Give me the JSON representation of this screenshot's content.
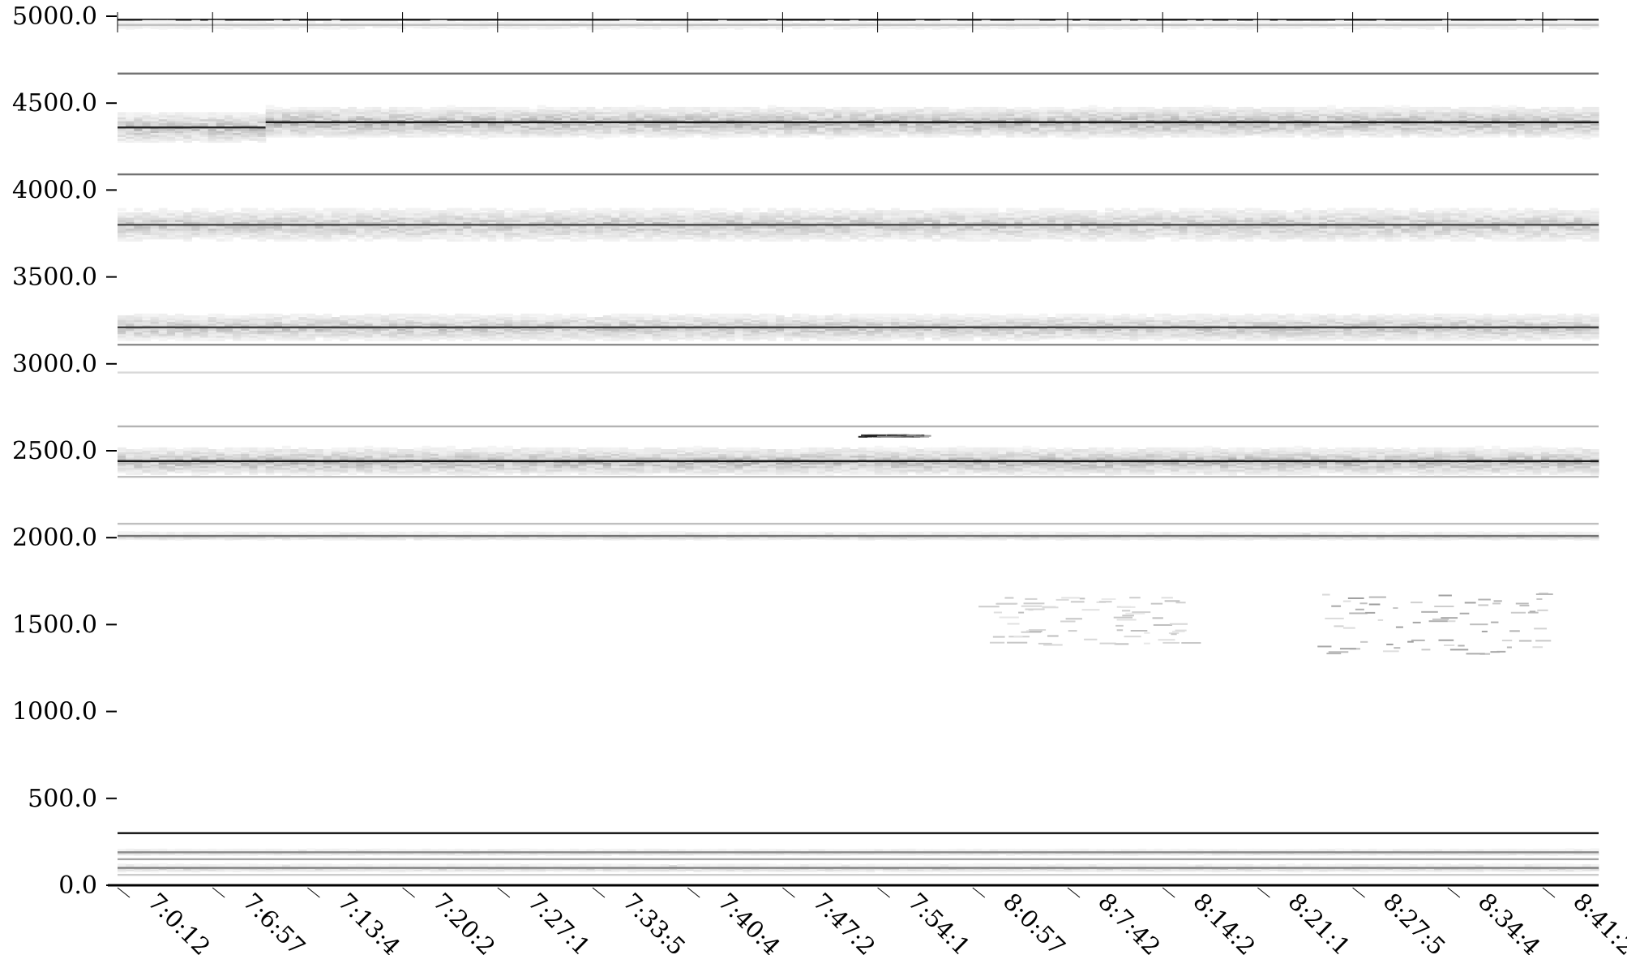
{
  "chart_data": {
    "type": "heatmap",
    "title": "",
    "xlabel": "",
    "ylabel": "",
    "ylim": [
      0,
      5000
    ],
    "y_ticks": [
      {
        "value": 0,
        "label": "0.0"
      },
      {
        "value": 500,
        "label": "500.0"
      },
      {
        "value": 1000,
        "label": "1000.0"
      },
      {
        "value": 1500,
        "label": "1500.0"
      },
      {
        "value": 2000,
        "label": "2000.0"
      },
      {
        "value": 2500,
        "label": "2500.0"
      },
      {
        "value": 3000,
        "label": "3000.0"
      },
      {
        "value": 3500,
        "label": "3500.0"
      },
      {
        "value": 4000,
        "label": "4000.0"
      },
      {
        "value": 4500,
        "label": "4500.0"
      },
      {
        "value": 5000,
        "label": "5000.0"
      }
    ],
    "x_tick_labels": [
      "7:0:12",
      "7:6:57",
      "7:13:4",
      "7:20:2",
      "7:27:1",
      "7:33:5",
      "7:40:4",
      "7:47:2",
      "7:54:1",
      "8:0:57",
      "8:7:42",
      "8:14:2",
      "8:21:1",
      "8:27:5",
      "8:34:4",
      "8:41:2"
    ],
    "colormap": "white-to-black (grayscale intensity)",
    "grid": false,
    "legend": "none",
    "bands": [
      {
        "value": 4980,
        "intensity": 0.9,
        "spread": 0
      },
      {
        "value": 4950,
        "intensity": 0.25,
        "spread": 30
      },
      {
        "value": 4670,
        "intensity": 0.55,
        "spread": 0
      },
      {
        "value": 4380,
        "intensity": 0.85,
        "spread": 90,
        "from": 0,
        "to": 0.1,
        "shift": -20
      },
      {
        "value": 4390,
        "intensity": 0.9,
        "spread": 90,
        "from": 0.1,
        "to": 1
      },
      {
        "value": 4090,
        "intensity": 0.55,
        "spread": 0
      },
      {
        "value": 3800,
        "intensity": 0.7,
        "spread": 100
      },
      {
        "value": 3210,
        "intensity": 0.75,
        "spread": 80
      },
      {
        "value": 3110,
        "intensity": 0.45,
        "spread": 0
      },
      {
        "value": 2950,
        "intensity": 0.15,
        "spread": 0
      },
      {
        "value": 2640,
        "intensity": 0.3,
        "spread": 0
      },
      {
        "value": 2440,
        "intensity": 0.9,
        "spread": 80
      },
      {
        "value": 2350,
        "intensity": 0.25,
        "spread": 0
      },
      {
        "value": 2080,
        "intensity": 0.25,
        "spread": 0
      },
      {
        "value": 2010,
        "intensity": 0.55,
        "spread": 20
      },
      {
        "value": 300,
        "intensity": 0.95,
        "spread": 0
      },
      {
        "value": 190,
        "intensity": 0.45,
        "spread": 15
      },
      {
        "value": 150,
        "intensity": 0.35,
        "spread": 0
      },
      {
        "value": 100,
        "intensity": 0.5,
        "spread": 20
      },
      {
        "value": 60,
        "intensity": 0.2,
        "spread": 0
      }
    ],
    "patches": [
      {
        "x_from": 0.58,
        "x_to": 0.72,
        "y_from": 1380,
        "y_to": 1670,
        "intensity": 0.2
      },
      {
        "x_from": 0.81,
        "x_to": 0.96,
        "y_from": 1330,
        "y_to": 1680,
        "intensity": 0.3
      },
      {
        "x_from": 0.5,
        "x_to": 0.54,
        "y_from": 2580,
        "y_to": 2590,
        "intensity": 0.7
      }
    ]
  }
}
